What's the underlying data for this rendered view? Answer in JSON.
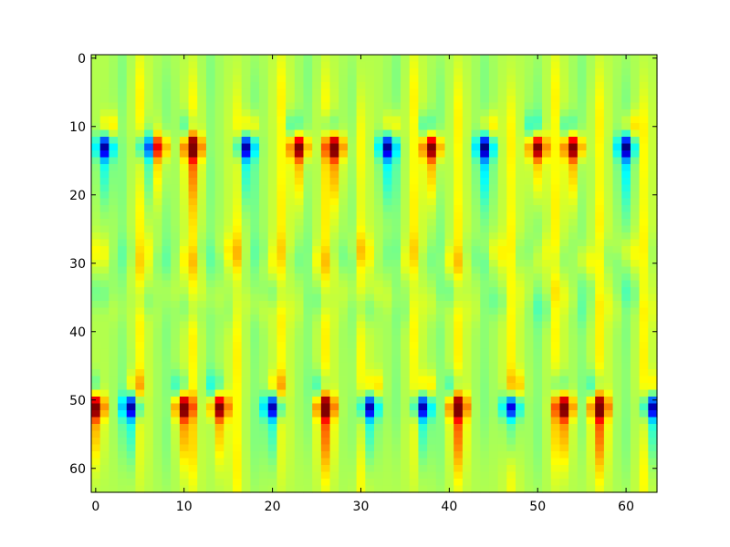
{
  "chart_data": {
    "type": "heatmap",
    "title": "",
    "xlabel": "",
    "ylabel": "",
    "xlim": [
      -0.5,
      63.5
    ],
    "ylim": [
      63.5,
      -0.5
    ],
    "x_ticks": [
      0,
      10,
      20,
      30,
      40,
      50,
      60
    ],
    "y_ticks": [
      0,
      10,
      20,
      30,
      40,
      50,
      60
    ],
    "x_tick_labels": [
      "0",
      "10",
      "20",
      "30",
      "40",
      "50",
      "60"
    ],
    "y_tick_labels": [
      "0",
      "10",
      "20",
      "30",
      "40",
      "50",
      "60"
    ],
    "grid": false,
    "legend": "none",
    "colormap": "jet",
    "colors": {
      "background": "#ffffff",
      "axes": "#000000",
      "dominant": "#9cff5a"
    },
    "value_range": [
      -1,
      1
    ],
    "grid_size": [
      64,
      64
    ],
    "features": {
      "strong_rows": [
        13,
        51
      ],
      "strong_row_events": [
        {
          "row": 13,
          "col": 1,
          "sign": -1
        },
        {
          "row": 13,
          "col": 6,
          "sign": -1
        },
        {
          "row": 13,
          "col": 7,
          "sign": 1
        },
        {
          "row": 13,
          "col": 11,
          "sign": 1
        },
        {
          "row": 13,
          "col": 17,
          "sign": -1
        },
        {
          "row": 13,
          "col": 23,
          "sign": 1
        },
        {
          "row": 13,
          "col": 27,
          "sign": 1
        },
        {
          "row": 13,
          "col": 33,
          "sign": -1
        },
        {
          "row": 13,
          "col": 38,
          "sign": 1
        },
        {
          "row": 13,
          "col": 44,
          "sign": -1
        },
        {
          "row": 13,
          "col": 50,
          "sign": 1
        },
        {
          "row": 13,
          "col": 54,
          "sign": 1
        },
        {
          "row": 13,
          "col": 60,
          "sign": -1
        },
        {
          "row": 51,
          "col": 0,
          "sign": 1
        },
        {
          "row": 51,
          "col": 4,
          "sign": -1
        },
        {
          "row": 51,
          "col": 10,
          "sign": 1
        },
        {
          "row": 51,
          "col": 14,
          "sign": 1
        },
        {
          "row": 51,
          "col": 20,
          "sign": -1
        },
        {
          "row": 51,
          "col": 26,
          "sign": 1
        },
        {
          "row": 51,
          "col": 31,
          "sign": -1
        },
        {
          "row": 51,
          "col": 37,
          "sign": -1
        },
        {
          "row": 51,
          "col": 41,
          "sign": 1
        },
        {
          "row": 51,
          "col": 47,
          "sign": -1
        },
        {
          "row": 51,
          "col": 53,
          "sign": 1
        },
        {
          "row": 51,
          "col": 57,
          "sign": 1
        },
        {
          "row": 51,
          "col": 63,
          "sign": -1
        }
      ],
      "warm_columns": [
        5,
        11,
        16,
        21,
        26,
        30,
        36,
        41,
        47,
        52,
        57,
        62
      ],
      "cool_columns": [
        3,
        8,
        13,
        18,
        24,
        29,
        34,
        39,
        44,
        50,
        55,
        60
      ]
    }
  }
}
